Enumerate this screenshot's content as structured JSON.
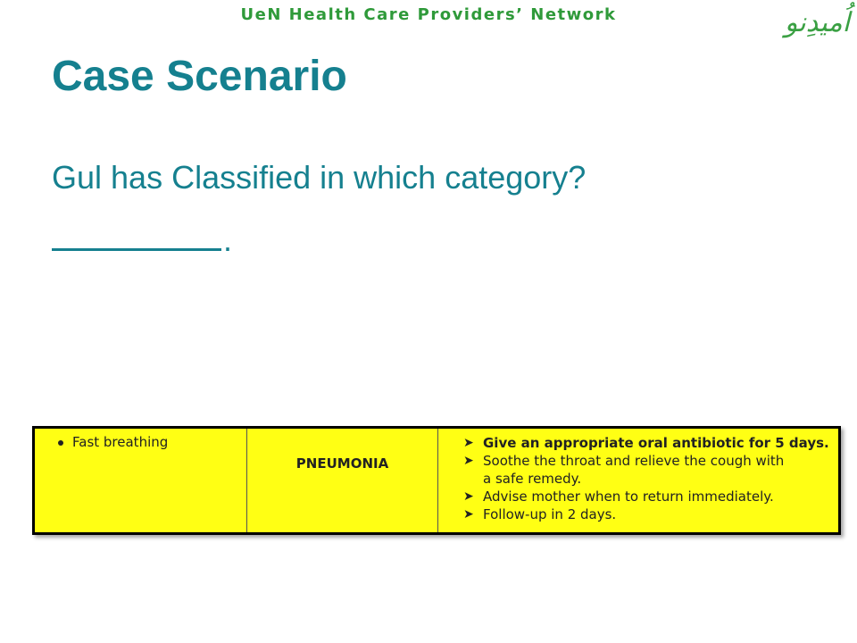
{
  "header": "UeN Health Care Providers’ Network",
  "logo_text": "اُمیدِنو",
  "title": "Case Scenario",
  "question": "Gul has Classified in which category?",
  "blank_suffix": ".",
  "table": {
    "sign": "Fast breathing",
    "classification": "PNEUMONIA",
    "actions": [
      "Give an appropriate oral antibiotic for 5 days.",
      "Soothe the throat and relieve the cough with a safe remedy.",
      "Advise mother when to return immediately.",
      "Follow-up in 2 days."
    ]
  },
  "colors": {
    "title": "#15808f",
    "header": "#2f9a3a",
    "table_bg": "#ffff14"
  }
}
